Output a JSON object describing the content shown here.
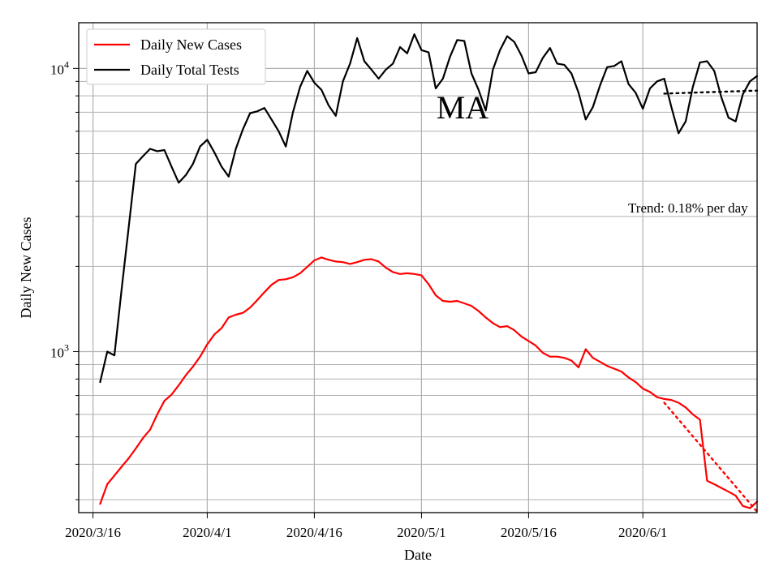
{
  "chart_data": {
    "type": "line",
    "title": "",
    "annotation": "MA",
    "trend_label": "Trend: 0.18% per day",
    "xlabel": "Date",
    "ylabel": "Daily New Cases",
    "yscale": "log",
    "ylim": [
      270,
      14500
    ],
    "grid": true,
    "legend_position": "top-left",
    "x_start": "2020/3/14",
    "x_end": "2020/6/17",
    "x_ticks": [
      "2020/3/16",
      "2020/4/1",
      "2020/4/16",
      "2020/5/1",
      "2020/5/16",
      "2020/6/1"
    ],
    "y_ticks": [
      {
        "value": 1000,
        "base": "10",
        "exp": "3"
      },
      {
        "value": 10000,
        "base": "10",
        "exp": "4"
      }
    ],
    "series": [
      {
        "name": "Daily New Cases",
        "color": "#ff0000",
        "style": "solid",
        "x": [
          "2020/3/17",
          "2020/3/18",
          "2020/3/19",
          "2020/3/20",
          "2020/3/21",
          "2020/3/22",
          "2020/3/23",
          "2020/3/24",
          "2020/3/25",
          "2020/3/26",
          "2020/3/27",
          "2020/3/28",
          "2020/3/29",
          "2020/3/30",
          "2020/3/31",
          "2020/4/1",
          "2020/4/2",
          "2020/4/3",
          "2020/4/4",
          "2020/4/5",
          "2020/4/6",
          "2020/4/7",
          "2020/4/8",
          "2020/4/9",
          "2020/4/10",
          "2020/4/11",
          "2020/4/12",
          "2020/4/13",
          "2020/4/14",
          "2020/4/15",
          "2020/4/16",
          "2020/4/17",
          "2020/4/18",
          "2020/4/19",
          "2020/4/20",
          "2020/4/21",
          "2020/4/22",
          "2020/4/23",
          "2020/4/24",
          "2020/4/25",
          "2020/4/26",
          "2020/4/27",
          "2020/4/28",
          "2020/4/29",
          "2020/4/30",
          "2020/5/1",
          "2020/5/2",
          "2020/5/3",
          "2020/5/4",
          "2020/5/5",
          "2020/5/6",
          "2020/5/7",
          "2020/5/8",
          "2020/5/9",
          "2020/5/10",
          "2020/5/11",
          "2020/5/12",
          "2020/5/13",
          "2020/5/14",
          "2020/5/15",
          "2020/5/16",
          "2020/5/17",
          "2020/5/18",
          "2020/5/19",
          "2020/5/20",
          "2020/5/21",
          "2020/5/22",
          "2020/5/23",
          "2020/5/24",
          "2020/5/25",
          "2020/5/26",
          "2020/5/27",
          "2020/5/28",
          "2020/5/29",
          "2020/5/30",
          "2020/5/31",
          "2020/6/1",
          "2020/6/2",
          "2020/6/3",
          "2020/6/4",
          "2020/6/5",
          "2020/6/6",
          "2020/6/7",
          "2020/6/8",
          "2020/6/9",
          "2020/6/10",
          "2020/6/11",
          "2020/6/12",
          "2020/6/13",
          "2020/6/14",
          "2020/6/15",
          "2020/6/16",
          "2020/6/17"
        ],
        "values": [
          290,
          340,
          365,
          392,
          420,
          455,
          495,
          530,
          600,
          670,
          705,
          760,
          825,
          885,
          960,
          1060,
          1150,
          1210,
          1320,
          1350,
          1370,
          1430,
          1520,
          1620,
          1720,
          1790,
          1800,
          1830,
          1890,
          1990,
          2100,
          2150,
          2110,
          2080,
          2070,
          2040,
          2070,
          2110,
          2120,
          2080,
          1980,
          1910,
          1880,
          1890,
          1880,
          1860,
          1730,
          1580,
          1510,
          1500,
          1510,
          1480,
          1450,
          1390,
          1320,
          1260,
          1220,
          1230,
          1190,
          1130,
          1090,
          1050,
          990,
          960,
          960,
          950,
          930,
          880,
          1020,
          950,
          920,
          890,
          870,
          850,
          810,
          780,
          740,
          720,
          690,
          680,
          675,
          660,
          635,
          600,
          575,
          350,
          340,
          330,
          320,
          310,
          285,
          280,
          295
        ]
      },
      {
        "name": "Daily Total Tests",
        "color": "#000000",
        "style": "solid",
        "x": [
          "2020/3/17",
          "2020/3/18",
          "2020/3/19",
          "2020/3/20",
          "2020/3/21",
          "2020/3/22",
          "2020/3/23",
          "2020/3/24",
          "2020/3/25",
          "2020/3/26",
          "2020/3/27",
          "2020/3/28",
          "2020/3/29",
          "2020/3/30",
          "2020/3/31",
          "2020/4/1",
          "2020/4/2",
          "2020/4/3",
          "2020/4/4",
          "2020/4/5",
          "2020/4/6",
          "2020/4/7",
          "2020/4/8",
          "2020/4/9",
          "2020/4/10",
          "2020/4/11",
          "2020/4/12",
          "2020/4/13",
          "2020/4/14",
          "2020/4/15",
          "2020/4/16",
          "2020/4/17",
          "2020/4/18",
          "2020/4/19",
          "2020/4/20",
          "2020/4/21",
          "2020/4/22",
          "2020/4/23",
          "2020/4/24",
          "2020/4/25",
          "2020/4/26",
          "2020/4/27",
          "2020/4/28",
          "2020/4/29",
          "2020/4/30",
          "2020/5/1",
          "2020/5/2",
          "2020/5/3",
          "2020/5/4",
          "2020/5/5",
          "2020/5/6",
          "2020/5/7",
          "2020/5/8",
          "2020/5/9",
          "2020/5/10",
          "2020/5/11",
          "2020/5/12",
          "2020/5/13",
          "2020/5/14",
          "2020/5/15",
          "2020/5/16",
          "2020/5/17",
          "2020/5/18",
          "2020/5/19",
          "2020/5/20",
          "2020/5/21",
          "2020/5/22",
          "2020/5/23",
          "2020/5/24",
          "2020/5/25",
          "2020/5/26",
          "2020/5/27",
          "2020/5/28",
          "2020/5/29",
          "2020/5/30",
          "2020/5/31",
          "2020/6/1",
          "2020/6/2",
          "2020/6/3",
          "2020/6/4",
          "2020/6/5",
          "2020/6/6",
          "2020/6/7",
          "2020/6/8",
          "2020/6/9",
          "2020/6/10",
          "2020/6/11",
          "2020/6/12",
          "2020/6/13",
          "2020/6/14",
          "2020/6/15",
          "2020/6/16",
          "2020/6/17"
        ],
        "values": [
          780,
          1000,
          970,
          1650,
          2750,
          4600,
          4900,
          5200,
          5100,
          5150,
          4500,
          3950,
          4200,
          4600,
          5300,
          5600,
          5050,
          4500,
          4150,
          5200,
          6100,
          6950,
          7050,
          7250,
          6600,
          6000,
          5300,
          7000,
          8600,
          9800,
          8900,
          8400,
          7400,
          6800,
          9000,
          10400,
          12800,
          10600,
          9900,
          9200,
          9900,
          10400,
          11900,
          11300,
          13200,
          11600,
          11400,
          8500,
          9200,
          11000,
          12600,
          12500,
          9600,
          8400,
          7100,
          9900,
          11600,
          13000,
          12400,
          11100,
          9600,
          9700,
          10900,
          11800,
          10400,
          10300,
          9600,
          8200,
          6600,
          7300,
          8700,
          10100,
          10200,
          10600,
          8800,
          8200,
          7200,
          8500,
          9000,
          9200,
          7300,
          5900,
          6500,
          8600,
          10500,
          10600,
          9800,
          7900,
          6700,
          6500,
          8100,
          9000,
          9400
        ]
      }
    ],
    "trend_lines": [
      {
        "series": "Daily New Cases",
        "color": "#ff0000",
        "style": "dotted",
        "x": [
          "2020/6/4",
          "2020/6/17"
        ],
        "values": [
          660,
          272
        ]
      },
      {
        "series": "Daily Total Tests",
        "color": "#000000",
        "style": "dotted",
        "x": [
          "2020/6/4",
          "2020/6/17"
        ],
        "values": [
          8150,
          8350
        ]
      }
    ]
  }
}
